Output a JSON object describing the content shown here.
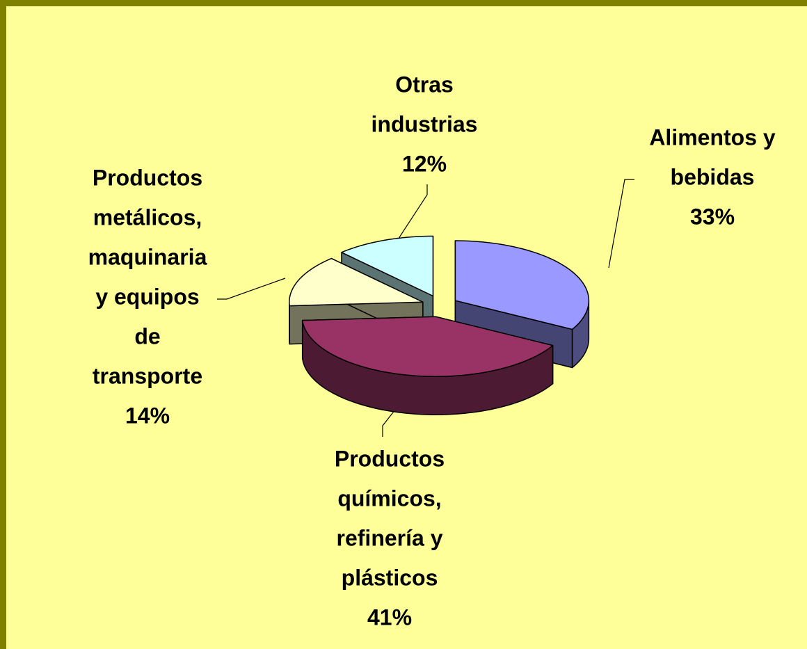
{
  "chart_data": {
    "type": "pie",
    "categories": [
      "Alimentos y bebidas",
      "Productos químicos, refinería y plásticos",
      "Productos metálicos, maquinaria y equipos de transporte",
      "Otras industrias"
    ],
    "values": [
      33,
      41,
      14,
      12
    ],
    "value_labels": [
      "33%",
      "41%",
      "14%",
      "12%"
    ],
    "colors": [
      "#9999ff",
      "#993366",
      "#ffffcc",
      "#ccffff"
    ]
  }
}
